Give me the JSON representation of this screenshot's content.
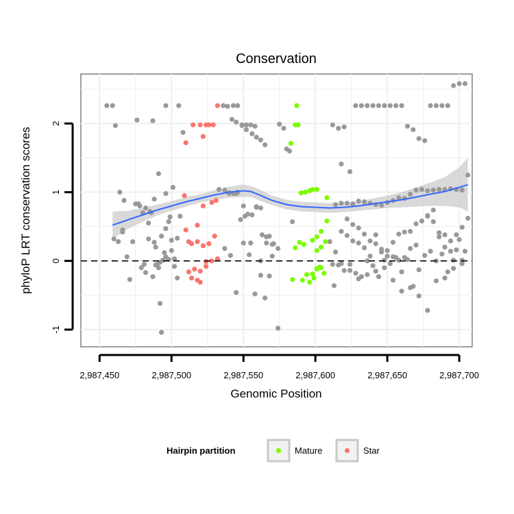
{
  "chart_data": {
    "type": "scatter",
    "title": "Conservation",
    "xlabel": "Genomic Position",
    "ylabel": "phyloP LRT conservation scores",
    "xlim": [
      2987437,
      2987709
    ],
    "ylim": [
      -1.25,
      2.72
    ],
    "xticks": [
      2987450,
      2987500,
      2987550,
      2987600,
      2987650,
      2987700
    ],
    "xtick_labels": [
      "2,987,450",
      "2,987,500",
      "2,987,550",
      "2,987,600",
      "2,987,650",
      "2,987,700"
    ],
    "yticks": [
      -1,
      0,
      1,
      2
    ],
    "ytick_labels": [
      "-1",
      "0",
      "1",
      "2"
    ],
    "grid": true,
    "reference_line": {
      "y": 0,
      "style": "dashed"
    },
    "legend": {
      "title": "Hairpin partition",
      "position": "bottom",
      "entries": [
        {
          "label": "Mature",
          "color": "#7CFC00"
        },
        {
          "label": "Star",
          "color": "#F8766D"
        }
      ]
    },
    "colors": {
      "other": "#999999",
      "Mature": "#7CFC00",
      "Star": "#F8766D",
      "smooth": "#3366FF",
      "ribbon": "#CCCCCC"
    },
    "smooth": {
      "x": [
        2987459,
        2987470,
        2987480,
        2987490,
        2987500,
        2987510,
        2987520,
        2987530,
        2987540,
        2987550,
        2987555,
        2987560,
        2987570,
        2987580,
        2987590,
        2987600,
        2987610,
        2987620,
        2987630,
        2987640,
        2987650,
        2987660,
        2987670,
        2987680,
        2987690,
        2987700,
        2987706
      ],
      "y": [
        0.52,
        0.6,
        0.67,
        0.74,
        0.8,
        0.86,
        0.91,
        0.96,
        1.0,
        1.02,
        1.01,
        0.97,
        0.88,
        0.82,
        0.79,
        0.78,
        0.77,
        0.78,
        0.8,
        0.83,
        0.86,
        0.89,
        0.93,
        0.97,
        1.01,
        1.07,
        1.11
      ],
      "lower": [
        0.32,
        0.47,
        0.57,
        0.66,
        0.73,
        0.79,
        0.85,
        0.89,
        0.92,
        0.93,
        0.93,
        0.89,
        0.81,
        0.75,
        0.72,
        0.71,
        0.7,
        0.71,
        0.73,
        0.75,
        0.77,
        0.78,
        0.79,
        0.8,
        0.8,
        0.78,
        0.72
      ],
      "upper": [
        0.72,
        0.73,
        0.77,
        0.82,
        0.87,
        0.93,
        0.97,
        1.03,
        1.08,
        1.11,
        1.09,
        1.05,
        0.95,
        0.89,
        0.86,
        0.85,
        0.84,
        0.85,
        0.87,
        0.91,
        0.95,
        1.0,
        1.07,
        1.14,
        1.22,
        1.36,
        1.5
      ]
    },
    "series": [
      {
        "group": "Other",
        "x": [
          2987455,
          2987459,
          2987461,
          2987464,
          2987467,
          2987460,
          2987463,
          2987466,
          2987469,
          2987471,
          2987466,
          2987473,
          2987475,
          2987477,
          2987479,
          2987481,
          2987476,
          2987478,
          2987480,
          2987482,
          2987484,
          2987485,
          2987487,
          2987489,
          2987491,
          2987493,
          2987495,
          2987496,
          2987498,
          2987500,
          2987502,
          2987504,
          2987487,
          2987489,
          2987491,
          2987493,
          2987496,
          2987498,
          2987500,
          2987502,
          2987504,
          2987506,
          2987482,
          2987484,
          2987486,
          2987488,
          2987490,
          2987492,
          2987494,
          2987496,
          2987488,
          2987492,
          2987496,
          2987499,
          2987501,
          2987505,
          2987508,
          2987536,
          2987539,
          2987543,
          2987546,
          2987549,
          2987552,
          2987555,
          2987558,
          2987533,
          2987537,
          2987540,
          2987543,
          2987546,
          2987550,
          2987553,
          2987556,
          2987559,
          2987562,
          2987537,
          2987541,
          2987545,
          2987548,
          2987551,
          2987555,
          2987559,
          2987562,
          2987565,
          2987568,
          2987542,
          2987545,
          2987549,
          2987552,
          2987556,
          2987559,
          2987562,
          2987565,
          2987568,
          2987571,
          2987574,
          2987550,
          2987554,
          2987558,
          2987562,
          2987566,
          2987570,
          2987574,
          2987540,
          2987545,
          2987563,
          2987566,
          2987570,
          2987575,
          2987578,
          2987580,
          2987582,
          2987584,
          2987612,
          2987616,
          2987620,
          2987624,
          2987628,
          2987632,
          2987636,
          2987640,
          2987644,
          2987648,
          2987652,
          2987656,
          2987660,
          2987664,
          2987668,
          2987672,
          2987676,
          2987680,
          2987684,
          2987688,
          2987692,
          2987696,
          2987700,
          2987704,
          2987614,
          2987618,
          2987622,
          2987626,
          2987630,
          2987634,
          2987638,
          2987642,
          2987646,
          2987650,
          2987654,
          2987658,
          2987662,
          2987666,
          2987670,
          2987674,
          2987678,
          2987682,
          2987686,
          2987690,
          2987694,
          2987698,
          2987702,
          2987706,
          2987610,
          2987614,
          2987618,
          2987622,
          2987626,
          2987630,
          2987634,
          2987638,
          2987642,
          2987646,
          2987650,
          2987654,
          2987658,
          2987662,
          2987666,
          2987670,
          2987674,
          2987678,
          2987682,
          2987686,
          2987690,
          2987694,
          2987698,
          2987702,
          2987612,
          2987616,
          2987620,
          2987624,
          2987628,
          2987632,
          2987636,
          2987640,
          2987644,
          2987648,
          2987652,
          2987656,
          2987660,
          2987664,
          2987668,
          2987672,
          2987676,
          2987680,
          2987684,
          2987688,
          2987692,
          2987696,
          2987700,
          2987704,
          2987618,
          2987622,
          2987626,
          2987630,
          2987634,
          2987638,
          2987642,
          2987646,
          2987650,
          2987654,
          2987658,
          2987662,
          2987666,
          2987670,
          2987674,
          2987678,
          2987682,
          2987686,
          2987690,
          2987694,
          2987698,
          2987702,
          2987706,
          2987613,
          2987618,
          2987624,
          2987630,
          2987636,
          2987642,
          2987648,
          2987654,
          2987660,
          2987666,
          2987672,
          2987678,
          2987684,
          2987690,
          2987696,
          2987702
        ],
        "y": [
          2.26,
          2.26,
          1.97,
          1.0,
          0.88,
          0.32,
          0.28,
          0.45,
          0.06,
          -0.27,
          0.42,
          0.28,
          0.83,
          0.83,
          -0.1,
          -0.05,
          2.05,
          0.8,
          0.7,
          -0.17,
          0.55,
          0.72,
          -0.23,
          -0.06,
          -0.1,
          -1.04,
          0.12,
          0.47,
          0.02,
          0.3,
          0.03,
          0.33,
          2.04,
          0.2,
          1.27,
          0.36,
          2.26,
          0.57,
          0.15,
          -0.08,
          -0.25,
          0.65,
          0.77,
          0.32,
          0.7,
          0.9,
          -0.05,
          -0.02,
          0.01,
          0.98,
          0.27,
          -0.62,
          0.06,
          0.64,
          1.07,
          2.26,
          1.87,
          2.26,
          2.25,
          2.26,
          2.26,
          1.98,
          1.98,
          1.98,
          1.96,
          1.04,
          1.03,
          0.98,
          0.98,
          1.0,
          0.8,
          0.68,
          0.67,
          0.79,
          0.77,
          0.18,
          0.08,
          -0.46,
          0.6,
          0.65,
          0.26,
          0.78,
          0.0,
          -0.54,
          -0.22,
          2.06,
          2.02,
          1.97,
          1.91,
          1.85,
          1.8,
          1.76,
          1.69,
          0.36,
          0.25,
          0.18,
          0.26,
          0.09,
          -0.48,
          -0.21,
          0.26,
          0.07,
          -0.98,
          0.99,
          0.98,
          0.38,
          0.35,
          0.24,
          1.99,
          1.93,
          1.63,
          1.6,
          0.57,
          1.98,
          1.93,
          1.95,
          1.3,
          2.26,
          2.26,
          2.26,
          2.26,
          2.26,
          2.26,
          2.26,
          2.26,
          2.26,
          1.96,
          1.91,
          1.78,
          1.75,
          2.26,
          2.26,
          2.26,
          2.26,
          2.55,
          2.58,
          2.58,
          0.82,
          0.84,
          0.84,
          0.83,
          0.87,
          0.86,
          0.84,
          0.82,
          0.81,
          0.85,
          0.88,
          0.92,
          0.91,
          0.97,
          1.03,
          1.04,
          1.02,
          1.03,
          1.04,
          1.04,
          1.05,
          1.04,
          1.03,
          1.25,
          0.28,
          0.13,
          0.43,
          0.37,
          0.29,
          0.26,
          0.19,
          0.07,
          0.38,
          0.17,
          0.15,
          0.27,
          0.39,
          0.42,
          0.43,
          0.54,
          0.58,
          0.65,
          0.57,
          0.35,
          0.2,
          0.14,
          0.38,
          0.49,
          -0.05,
          -0.06,
          -0.14,
          -0.05,
          -0.18,
          -0.23,
          0.0,
          -0.07,
          -0.23,
          0.01,
          -0.04,
          0.05,
          -0.16,
          0.02,
          -0.37,
          -0.13,
          0.08,
          0.14,
          0.0,
          0.1,
          -0.16,
          0.01,
          0.31,
          0.14,
          1.41,
          0.61,
          0.53,
          0.48,
          0.39,
          0.29,
          0.25,
          0.13,
          0.07,
          0.06,
          0.01,
          0.05,
          0.18,
          0.23,
          0.58,
          0.66,
          0.74,
          0.41,
          0.38,
          0.29,
          0.16,
          0.01,
          0.62,
          -0.36,
          -0.04,
          -0.14,
          -0.26,
          -0.2,
          -0.15,
          -0.1,
          -0.28,
          -0.44,
          -0.39,
          -0.51,
          -0.72,
          -0.29,
          -0.25,
          -0.11,
          -0.04
        ]
      },
      {
        "group": "Mature",
        "x": [
          2987586,
          2987588,
          2987587,
          2987583,
          2987590,
          2987593,
          2987596,
          2987598,
          2987601,
          2987608,
          2987608,
          2987604,
          2987601,
          2987598,
          2987592,
          2987589,
          2987586,
          2987601,
          2987604,
          2987607,
          2987598,
          2987601,
          2987604,
          2987606,
          2987584,
          2987591,
          2987594,
          2987596,
          2987599,
          2987601,
          2987603
        ],
        "y": [
          1.98,
          1.98,
          2.26,
          1.71,
          0.99,
          1.0,
          1.02,
          1.04,
          1.04,
          0.92,
          0.58,
          0.43,
          0.35,
          0.3,
          0.24,
          0.27,
          0.19,
          0.15,
          0.2,
          0.28,
          -0.19,
          -0.12,
          -0.1,
          -0.18,
          -0.27,
          -0.28,
          -0.2,
          -0.31,
          -0.25,
          -0.11,
          -0.09
        ]
      },
      {
        "group": "Star",
        "x": [
          2987532,
          2987515,
          2987520,
          2987524,
          2987526,
          2987529,
          2987510,
          2987522,
          2987528,
          2987531,
          2987509,
          2987522,
          2987518,
          2987510,
          2987512,
          2987514,
          2987518,
          2987522,
          2987526,
          2987530,
          2987532,
          2987528,
          2987524,
          2987520,
          2987516,
          2987512,
          2987514,
          2987518,
          2987520,
          2987524
        ],
        "y": [
          2.26,
          1.98,
          1.98,
          1.98,
          1.98,
          1.98,
          1.72,
          1.81,
          0.85,
          0.88,
          0.95,
          0.8,
          0.52,
          0.45,
          0.28,
          0.25,
          0.28,
          0.22,
          0.25,
          0.36,
          0.03,
          0.0,
          -0.01,
          -0.15,
          -0.12,
          -0.16,
          -0.25,
          -0.28,
          -0.31,
          -0.08
        ]
      }
    ]
  }
}
